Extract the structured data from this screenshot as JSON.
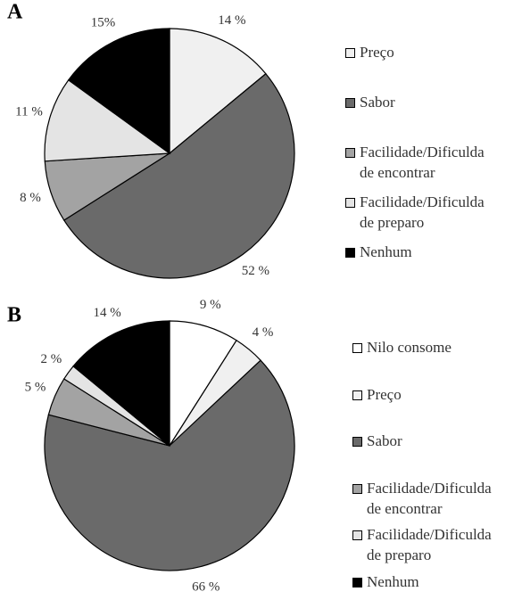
{
  "chart_data": [
    {
      "type": "pie",
      "title": "A",
      "categories": [
        "Preço",
        "Sabor",
        "Facilidade/Dificulda\nde encontrar",
        "Facilidade/Dificulda\nde preparo",
        "Nenhum"
      ],
      "values": [
        14,
        52,
        8,
        11,
        15
      ],
      "value_labels": [
        "14 %",
        "52 %",
        "8 %",
        "11 %",
        "15%"
      ],
      "colors": [
        "#f0f0f0",
        "#6a6a6a",
        "#a3a3a3",
        "#e4e4e4",
        "#000000"
      ],
      "legend": "right"
    },
    {
      "type": "pie",
      "title": "B",
      "categories": [
        "Nilo consome",
        "Preço",
        "Sabor",
        "Facilidade/Dificulda\nde encontrar",
        "Facilidade/Dificulda\nde preparo",
        "Nenhum"
      ],
      "values": [
        9,
        4,
        66,
        5,
        2,
        14
      ],
      "value_labels": [
        "9 %",
        "4 %",
        "66 %",
        "5 %",
        "2 %",
        "14 %"
      ],
      "colors": [
        "#ffffff",
        "#f0f0f0",
        "#6a6a6a",
        "#a3a3a3",
        "#e4e4e4",
        "#000000"
      ],
      "legend": "right"
    }
  ]
}
